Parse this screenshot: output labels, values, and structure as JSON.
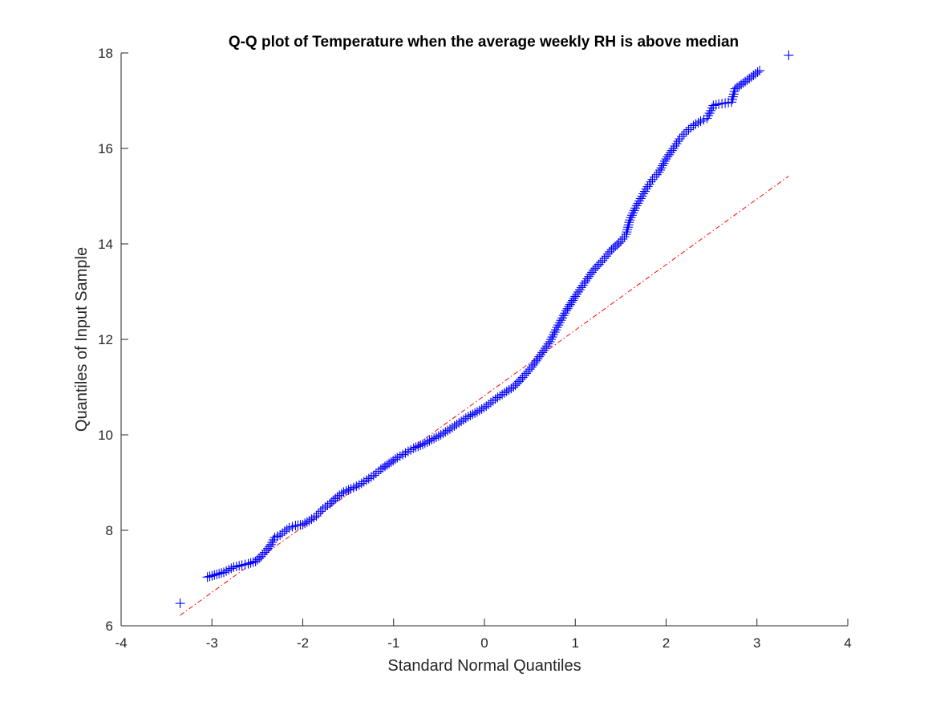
{
  "chart_data": {
    "type": "scatter",
    "title": "Q-Q plot of Temperature when the average weekly RH is above median",
    "xlabel": "Standard Normal Quantiles",
    "ylabel": "Quantiles of Input Sample",
    "xlim": [
      -4,
      4
    ],
    "ylim": [
      6,
      18
    ],
    "xticks": [
      -4,
      -3,
      -2,
      -1,
      0,
      1,
      2,
      3,
      4
    ],
    "yticks": [
      6,
      8,
      10,
      12,
      14,
      16,
      18
    ],
    "grid": false,
    "marker": "+",
    "colors": {
      "points": "#0000ff",
      "reference_line": "#ff0000",
      "axes": "#262626"
    },
    "reference_line": {
      "x": [
        -3.35,
        3.35
      ],
      "y": [
        6.22,
        15.42
      ],
      "style": "dash-dot"
    },
    "series": [
      {
        "values_xy": [
          [
            -3.35,
            6.47
          ],
          [
            -3.05,
            7.02
          ],
          [
            -2.87,
            7.12
          ],
          [
            -2.76,
            7.23
          ],
          [
            -2.67,
            7.27
          ],
          [
            -2.6,
            7.3
          ],
          [
            -2.52,
            7.35
          ],
          [
            -2.46,
            7.45
          ],
          [
            -2.4,
            7.58
          ],
          [
            -2.35,
            7.7
          ],
          [
            -2.31,
            7.85
          ],
          [
            -2.25,
            7.9
          ],
          [
            -2.2,
            7.98
          ],
          [
            -2.15,
            8.05
          ],
          [
            -2.08,
            8.1
          ],
          [
            -2.0,
            8.12
          ],
          [
            -1.93,
            8.2
          ],
          [
            -1.85,
            8.3
          ],
          [
            -1.78,
            8.45
          ],
          [
            -1.7,
            8.56
          ],
          [
            -1.62,
            8.7
          ],
          [
            -1.55,
            8.8
          ],
          [
            -1.47,
            8.87
          ],
          [
            -1.38,
            8.95
          ],
          [
            -1.3,
            9.05
          ],
          [
            -1.22,
            9.15
          ],
          [
            -1.14,
            9.28
          ],
          [
            -1.05,
            9.4
          ],
          [
            -0.96,
            9.52
          ],
          [
            -0.87,
            9.62
          ],
          [
            -0.78,
            9.72
          ],
          [
            -0.68,
            9.8
          ],
          [
            -0.58,
            9.9
          ],
          [
            -0.48,
            10.0
          ],
          [
            -0.38,
            10.12
          ],
          [
            -0.28,
            10.25
          ],
          [
            -0.18,
            10.38
          ],
          [
            -0.08,
            10.48
          ],
          [
            0.02,
            10.6
          ],
          [
            0.12,
            10.75
          ],
          [
            0.22,
            10.88
          ],
          [
            0.32,
            11.0
          ],
          [
            0.42,
            11.2
          ],
          [
            0.52,
            11.42
          ],
          [
            0.62,
            11.68
          ],
          [
            0.72,
            11.95
          ],
          [
            0.8,
            12.25
          ],
          [
            0.9,
            12.6
          ],
          [
            1.0,
            12.9
          ],
          [
            1.1,
            13.18
          ],
          [
            1.2,
            13.45
          ],
          [
            1.3,
            13.65
          ],
          [
            1.4,
            13.88
          ],
          [
            1.5,
            14.05
          ],
          [
            1.56,
            14.2
          ],
          [
            1.6,
            14.5
          ],
          [
            1.66,
            14.75
          ],
          [
            1.72,
            14.95
          ],
          [
            1.78,
            15.15
          ],
          [
            1.85,
            15.35
          ],
          [
            1.92,
            15.5
          ],
          [
            2.0,
            15.78
          ],
          [
            2.08,
            16.0
          ],
          [
            2.15,
            16.2
          ],
          [
            2.22,
            16.35
          ],
          [
            2.3,
            16.48
          ],
          [
            2.38,
            16.57
          ],
          [
            2.45,
            16.63
          ],
          [
            2.52,
            16.9
          ],
          [
            2.58,
            16.93
          ],
          [
            2.65,
            16.95
          ],
          [
            2.72,
            16.97
          ],
          [
            2.76,
            17.25
          ],
          [
            2.87,
            17.4
          ],
          [
            3.03,
            17.63
          ],
          [
            3.35,
            17.95
          ]
        ]
      }
    ]
  }
}
